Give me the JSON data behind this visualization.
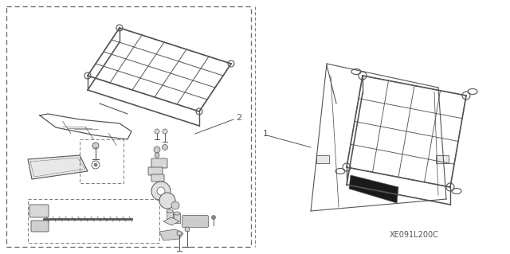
{
  "background_color": "#ffffff",
  "line_color": "#555555",
  "dash_color": "#666666",
  "label_1": "1",
  "label_2": "2",
  "part_code": "XE091L200C",
  "fig_width": 6.4,
  "fig_height": 3.19,
  "dpi": 100
}
